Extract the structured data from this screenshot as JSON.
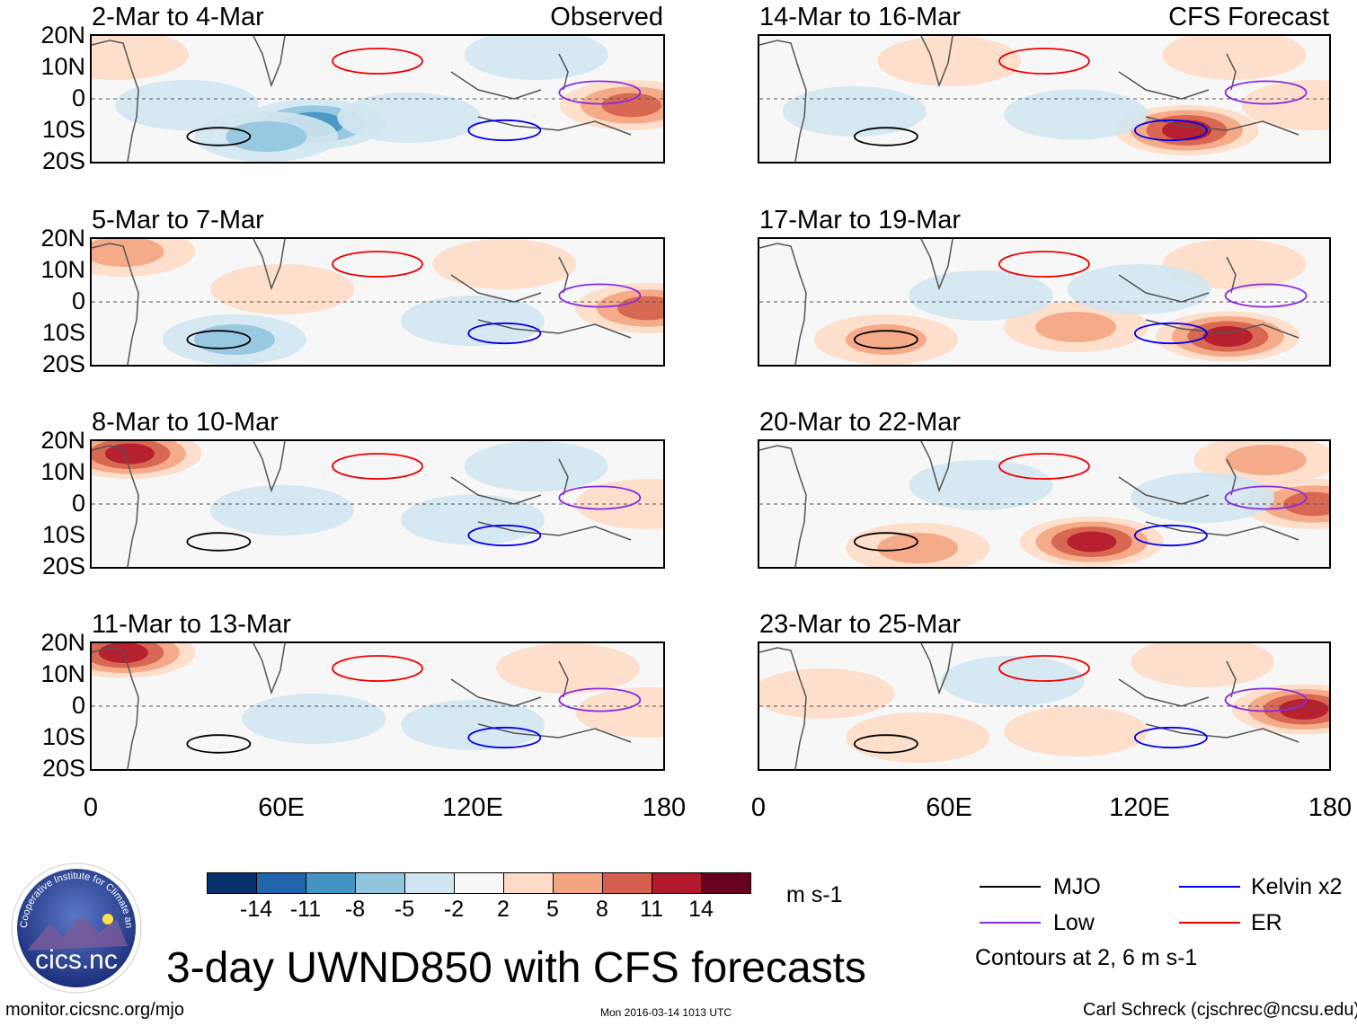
{
  "chart_data": {
    "type": "heatmap",
    "title": "3-day UWND850 with CFS forecasts",
    "variable": "UWND850",
    "units": "m s-1",
    "lat_ticks": [
      "20N",
      "10N",
      "0",
      "10S",
      "20S"
    ],
    "lon_ticks": [
      "0",
      "60E",
      "120E",
      "180"
    ],
    "lat_range": [
      -20,
      20
    ],
    "lon_range": [
      0,
      180
    ],
    "observed_label": "Observed",
    "forecast_label": "CFS Forecast",
    "panels": [
      {
        "period": "2-Mar to 4-Mar",
        "source": "Observed",
        "blobs": [
          {
            "lon": 170,
            "lat": -2,
            "val": 11
          },
          {
            "lon": 70,
            "lat": -8,
            "val": -9
          },
          {
            "lon": 55,
            "lat": -12,
            "val": -8
          },
          {
            "lon": 100,
            "lat": -6,
            "val": -5
          },
          {
            "lon": 8,
            "lat": 14,
            "val": 5
          },
          {
            "lon": 140,
            "lat": 14,
            "val": -4
          },
          {
            "lon": 30,
            "lat": -2,
            "val": -4
          }
        ]
      },
      {
        "period": "5-Mar to 7-Mar",
        "source": "Observed",
        "blobs": [
          {
            "lon": 175,
            "lat": -2,
            "val": 9
          },
          {
            "lon": 10,
            "lat": 16,
            "val": 7
          },
          {
            "lon": 45,
            "lat": -12,
            "val": -6
          },
          {
            "lon": 120,
            "lat": -6,
            "val": -4
          },
          {
            "lon": 60,
            "lat": 4,
            "val": 3
          },
          {
            "lon": 130,
            "lat": 12,
            "val": 3
          }
        ]
      },
      {
        "period": "8-Mar to 10-Mar",
        "source": "Observed",
        "blobs": [
          {
            "lon": 12,
            "lat": 16,
            "val": 14
          },
          {
            "lon": 120,
            "lat": -5,
            "val": -5
          },
          {
            "lon": 60,
            "lat": -2,
            "val": -4
          },
          {
            "lon": 175,
            "lat": 0,
            "val": 5
          },
          {
            "lon": 140,
            "lat": 12,
            "val": -4
          }
        ]
      },
      {
        "period": "11-Mar to 13-Mar",
        "source": "Observed",
        "blobs": [
          {
            "lon": 10,
            "lat": 17,
            "val": 12
          },
          {
            "lon": 120,
            "lat": -6,
            "val": -5
          },
          {
            "lon": 70,
            "lat": -4,
            "val": -3
          },
          {
            "lon": 175,
            "lat": -2,
            "val": 5
          },
          {
            "lon": 150,
            "lat": 12,
            "val": 4
          }
        ]
      },
      {
        "period": "14-Mar to 16-Mar",
        "source": "CFS Forecast",
        "blobs": [
          {
            "lon": 135,
            "lat": -10,
            "val": 12
          },
          {
            "lon": 60,
            "lat": 12,
            "val": 4
          },
          {
            "lon": 150,
            "lat": 14,
            "val": 4
          },
          {
            "lon": 100,
            "lat": -5,
            "val": -5
          },
          {
            "lon": 30,
            "lat": -4,
            "val": -4
          },
          {
            "lon": 175,
            "lat": -2,
            "val": 4
          }
        ]
      },
      {
        "period": "17-Mar to 19-Mar",
        "source": "CFS Forecast",
        "blobs": [
          {
            "lon": 148,
            "lat": -11,
            "val": 14
          },
          {
            "lon": 100,
            "lat": -8,
            "val": 6
          },
          {
            "lon": 150,
            "lat": 12,
            "val": 5
          },
          {
            "lon": 40,
            "lat": -12,
            "val": 6
          },
          {
            "lon": 70,
            "lat": 2,
            "val": -3
          },
          {
            "lon": 120,
            "lat": 4,
            "val": -3
          }
        ]
      },
      {
        "period": "20-Mar to 22-Mar",
        "source": "CFS Forecast",
        "blobs": [
          {
            "lon": 105,
            "lat": -12,
            "val": 13
          },
          {
            "lon": 175,
            "lat": 0,
            "val": 10
          },
          {
            "lon": 160,
            "lat": 14,
            "val": 6
          },
          {
            "lon": 50,
            "lat": -14,
            "val": 7
          },
          {
            "lon": 70,
            "lat": 6,
            "val": -4
          },
          {
            "lon": 140,
            "lat": 2,
            "val": -3
          }
        ]
      },
      {
        "period": "23-Mar to 25-Mar",
        "source": "CFS Forecast",
        "blobs": [
          {
            "lon": 172,
            "lat": -1,
            "val": 12
          },
          {
            "lon": 140,
            "lat": 14,
            "val": 5
          },
          {
            "lon": 50,
            "lat": -10,
            "val": 5
          },
          {
            "lon": 100,
            "lat": -8,
            "val": 4
          },
          {
            "lon": 80,
            "lat": 8,
            "val": -3
          },
          {
            "lon": 20,
            "lat": 4,
            "val": 4
          }
        ]
      }
    ],
    "colorbar": {
      "labels": [
        "-14",
        "-11",
        "-8",
        "-5",
        "-2",
        "2",
        "5",
        "8",
        "11",
        "14"
      ],
      "colors": [
        "#08306b",
        "#2166ac",
        "#4393c3",
        "#92c5de",
        "#d1e5f0",
        "#f7f7f7",
        "#fddbc7",
        "#f4a582",
        "#d6604d",
        "#b2182b",
        "#67001f"
      ],
      "units_label": "m s-1"
    },
    "legend": [
      {
        "label": "MJO",
        "color": "#000000"
      },
      {
        "label": "Kelvin x2",
        "color": "#0000ee"
      },
      {
        "label": "Low",
        "color": "#8a2be2"
      },
      {
        "label": "ER",
        "color": "#ee0000"
      }
    ],
    "contour_note": "Contours at 2, 6 m s-1"
  },
  "logo": {
    "text": "cics.nc",
    "ring_text": "Cooperative Institute for Climate and Satellites"
  },
  "footer": {
    "url": "monitor.cicsnc.org/mjo",
    "timestamp": "Mon 2016-03-14 1013 UTC",
    "credit": "Carl Schreck (cjschrec@ncsu.edu)"
  }
}
